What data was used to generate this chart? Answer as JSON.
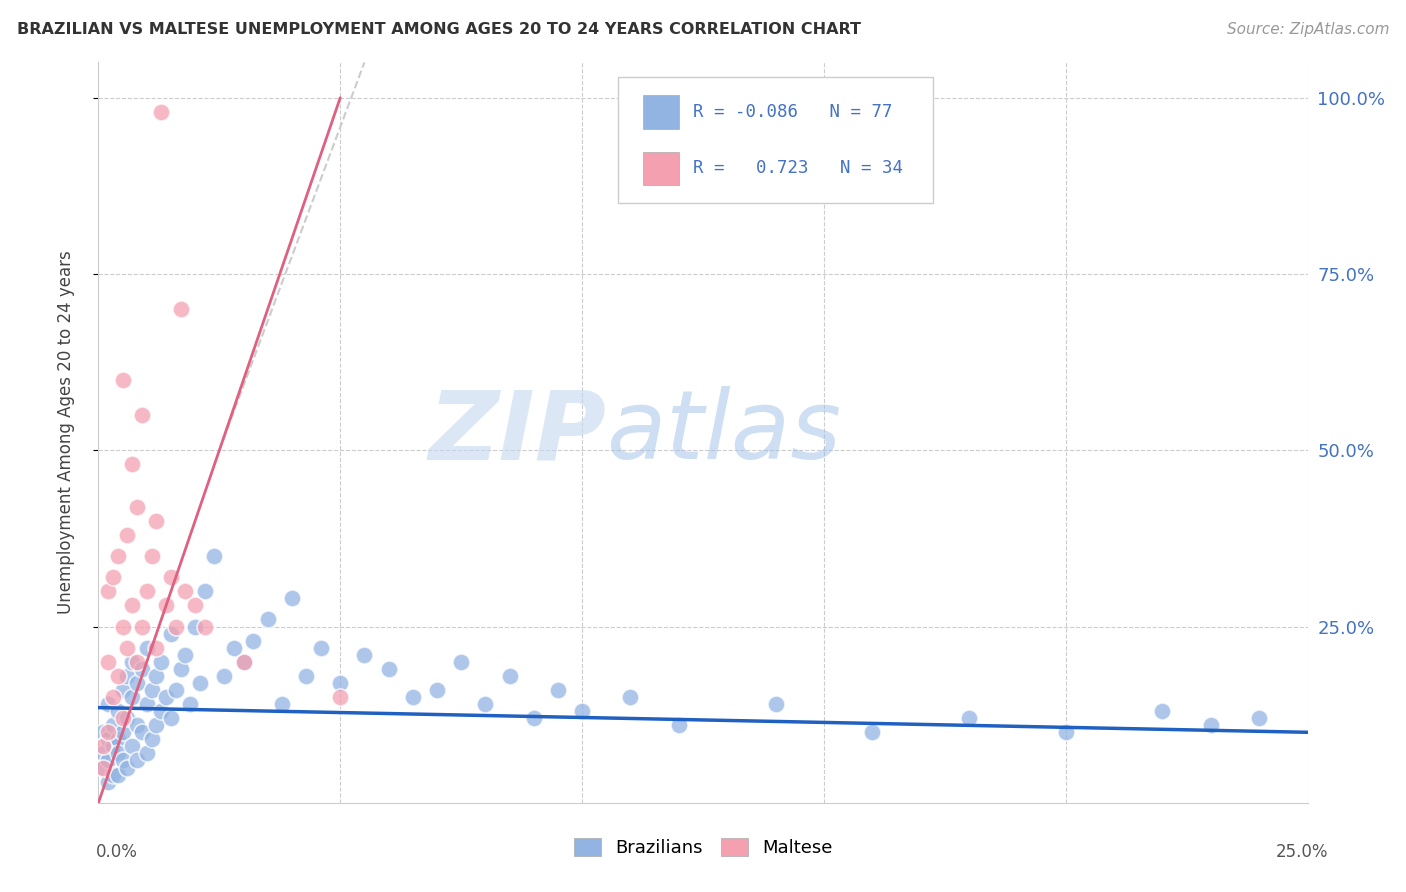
{
  "title": "BRAZILIAN VS MALTESE UNEMPLOYMENT AMONG AGES 20 TO 24 YEARS CORRELATION CHART",
  "source": "Source: ZipAtlas.com",
  "ylabel": "Unemployment Among Ages 20 to 24 years",
  "ytick_labels": [
    "100.0%",
    "75.0%",
    "50.0%",
    "25.0%"
  ],
  "ytick_values": [
    1.0,
    0.75,
    0.5,
    0.25
  ],
  "xlim": [
    0.0,
    0.25
  ],
  "ylim": [
    0.0,
    1.05
  ],
  "brazil_R": -0.086,
  "brazil_N": 77,
  "maltese_R": 0.723,
  "maltese_N": 34,
  "brazil_color": "#92b4e3",
  "maltese_color": "#f4a0b0",
  "brazil_line_color": "#2060c0",
  "maltese_line_color": "#e06080",
  "background_color": "#ffffff",
  "grid_color": "#cccccc",
  "title_color": "#333333",
  "watermark_zip": "ZIP",
  "watermark_atlas": "atlas",
  "brazil_x": [
    0.001,
    0.001,
    0.001,
    0.002,
    0.002,
    0.002,
    0.002,
    0.003,
    0.003,
    0.003,
    0.004,
    0.004,
    0.004,
    0.004,
    0.005,
    0.005,
    0.005,
    0.006,
    0.006,
    0.006,
    0.007,
    0.007,
    0.007,
    0.008,
    0.008,
    0.008,
    0.009,
    0.009,
    0.01,
    0.01,
    0.01,
    0.011,
    0.011,
    0.012,
    0.012,
    0.013,
    0.013,
    0.014,
    0.015,
    0.015,
    0.016,
    0.017,
    0.018,
    0.019,
    0.02,
    0.021,
    0.022,
    0.024,
    0.026,
    0.028,
    0.03,
    0.032,
    0.035,
    0.038,
    0.04,
    0.043,
    0.046,
    0.05,
    0.055,
    0.06,
    0.065,
    0.07,
    0.075,
    0.08,
    0.085,
    0.09,
    0.095,
    0.1,
    0.11,
    0.12,
    0.14,
    0.16,
    0.18,
    0.2,
    0.22,
    0.23,
    0.24
  ],
  "brazil_y": [
    0.1,
    0.07,
    0.05,
    0.14,
    0.09,
    0.06,
    0.03,
    0.11,
    0.08,
    0.04,
    0.13,
    0.09,
    0.07,
    0.04,
    0.16,
    0.1,
    0.06,
    0.18,
    0.12,
    0.05,
    0.2,
    0.15,
    0.08,
    0.17,
    0.11,
    0.06,
    0.19,
    0.1,
    0.22,
    0.14,
    0.07,
    0.16,
    0.09,
    0.18,
    0.11,
    0.2,
    0.13,
    0.15,
    0.24,
    0.12,
    0.16,
    0.19,
    0.21,
    0.14,
    0.25,
    0.17,
    0.3,
    0.35,
    0.18,
    0.22,
    0.2,
    0.23,
    0.26,
    0.14,
    0.29,
    0.18,
    0.22,
    0.17,
    0.21,
    0.19,
    0.15,
    0.16,
    0.2,
    0.14,
    0.18,
    0.12,
    0.16,
    0.13,
    0.15,
    0.11,
    0.14,
    0.1,
    0.12,
    0.1,
    0.13,
    0.11,
    0.12
  ],
  "maltese_x": [
    0.001,
    0.001,
    0.002,
    0.002,
    0.002,
    0.003,
    0.003,
    0.004,
    0.004,
    0.005,
    0.005,
    0.005,
    0.006,
    0.006,
    0.007,
    0.007,
    0.008,
    0.008,
    0.009,
    0.009,
    0.01,
    0.011,
    0.012,
    0.012,
    0.013,
    0.014,
    0.015,
    0.016,
    0.017,
    0.018,
    0.02,
    0.022,
    0.03,
    0.05
  ],
  "maltese_y": [
    0.05,
    0.08,
    0.1,
    0.2,
    0.3,
    0.15,
    0.32,
    0.18,
    0.35,
    0.12,
    0.25,
    0.6,
    0.22,
    0.38,
    0.28,
    0.48,
    0.2,
    0.42,
    0.25,
    0.55,
    0.3,
    0.35,
    0.22,
    0.4,
    0.98,
    0.28,
    0.32,
    0.25,
    0.7,
    0.3,
    0.28,
    0.25,
    0.2,
    0.15
  ]
}
